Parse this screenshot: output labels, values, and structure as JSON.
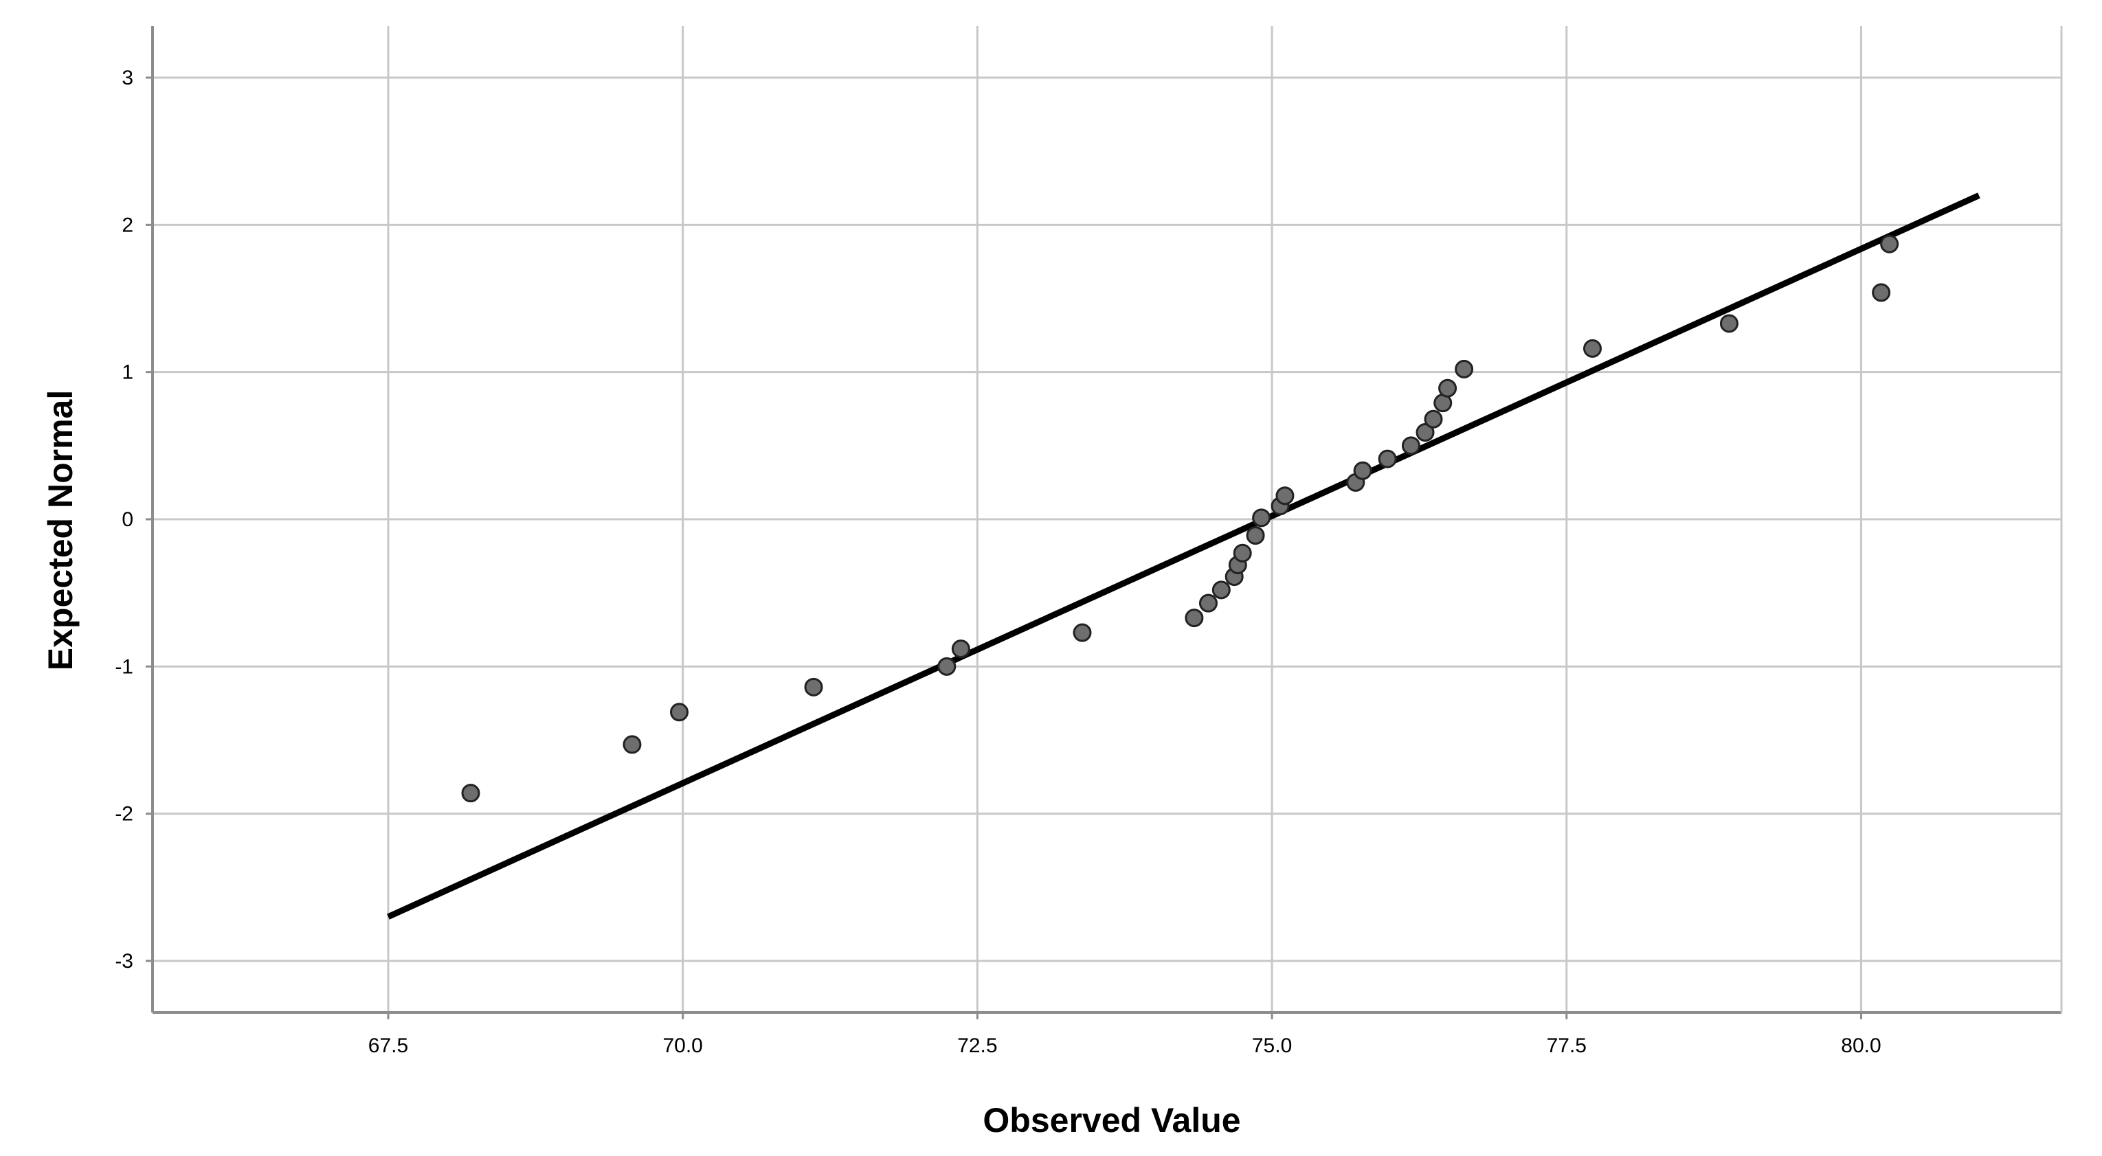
{
  "chart_data": {
    "type": "scatter",
    "xlabel": "Observed Value",
    "ylabel": "Expected Normal",
    "xlim": [
      65.5,
      81.7
    ],
    "ylim": [
      -3.35,
      3.35
    ],
    "xticks": [
      "67.5",
      "70.0",
      "72.5",
      "75.0",
      "77.5",
      "80.0"
    ],
    "xtick_values": [
      67.5,
      70.0,
      72.5,
      75.0,
      77.5,
      80.0
    ],
    "yticks": [
      "3",
      "2",
      "1",
      "0",
      "-1",
      "-2",
      "-3"
    ],
    "ytick_values": [
      3,
      2,
      1,
      0,
      -1,
      -2,
      -3
    ],
    "grid": true,
    "reference_line": {
      "x": [
        67.5,
        81.0
      ],
      "y": [
        -2.7,
        2.2
      ]
    },
    "points": [
      {
        "x": 68.2,
        "y": -1.86
      },
      {
        "x": 69.57,
        "y": -1.53
      },
      {
        "x": 69.97,
        "y": -1.31
      },
      {
        "x": 71.11,
        "y": -1.14
      },
      {
        "x": 72.24,
        "y": -1.0
      },
      {
        "x": 72.36,
        "y": -0.88
      },
      {
        "x": 73.39,
        "y": -0.77
      },
      {
        "x": 74.34,
        "y": -0.67
      },
      {
        "x": 74.46,
        "y": -0.57
      },
      {
        "x": 74.57,
        "y": -0.48
      },
      {
        "x": 74.68,
        "y": -0.39
      },
      {
        "x": 74.71,
        "y": -0.31
      },
      {
        "x": 74.75,
        "y": -0.23
      },
      {
        "x": 74.86,
        "y": -0.11
      },
      {
        "x": 74.91,
        "y": 0.01
      },
      {
        "x": 75.07,
        "y": 0.09
      },
      {
        "x": 75.11,
        "y": 0.16
      },
      {
        "x": 75.71,
        "y": 0.25
      },
      {
        "x": 75.77,
        "y": 0.33
      },
      {
        "x": 75.98,
        "y": 0.41
      },
      {
        "x": 76.18,
        "y": 0.5
      },
      {
        "x": 76.3,
        "y": 0.59
      },
      {
        "x": 76.37,
        "y": 0.68
      },
      {
        "x": 76.45,
        "y": 0.79
      },
      {
        "x": 76.49,
        "y": 0.89
      },
      {
        "x": 76.63,
        "y": 1.02
      },
      {
        "x": 77.72,
        "y": 1.16
      },
      {
        "x": 78.88,
        "y": 1.33
      },
      {
        "x": 80.17,
        "y": 1.54
      },
      {
        "x": 80.24,
        "y": 1.87
      }
    ]
  },
  "colors": {
    "point_fill": "#6e6e6e",
    "point_stroke": "#222222",
    "line": "#000000",
    "grid": "#c8c8c8",
    "axis": "#8c8c8c"
  }
}
